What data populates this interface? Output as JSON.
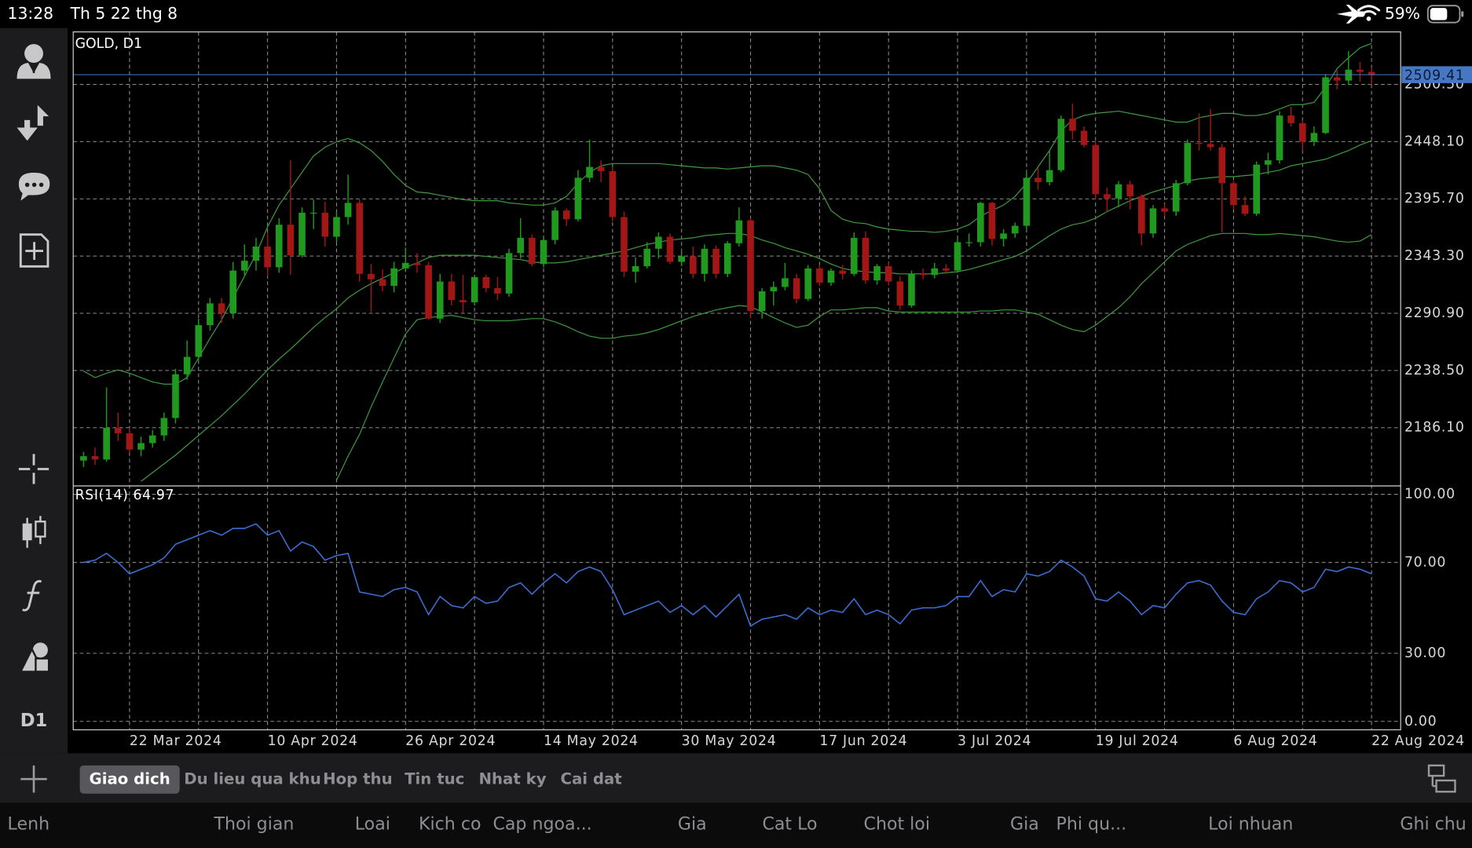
{
  "status_bar": {
    "time": "13:28",
    "date": "Th 5 22 thg 8",
    "battery": "59%"
  },
  "sidebar": {
    "timeframe": "D1"
  },
  "chart_data": [
    {
      "type": "candlestick",
      "title": "GOLD, D1",
      "x": [
        null,
        null,
        null,
        null,
        "22 Mar 2024",
        null,
        null,
        null,
        null,
        null,
        null,
        null,
        null,
        null,
        null,
        null,
        "10 Apr 2024",
        null,
        null,
        null,
        null,
        null,
        null,
        null,
        null,
        null,
        null,
        null,
        "26 Apr 2024",
        null,
        null,
        null,
        null,
        null,
        null,
        null,
        null,
        null,
        null,
        null,
        "14 May 2024",
        null,
        null,
        null,
        null,
        null,
        null,
        null,
        null,
        null,
        null,
        null,
        "30 May 2024",
        null,
        null,
        null,
        null,
        null,
        null,
        null,
        null,
        null,
        null,
        null,
        "17 Jun 2024",
        null,
        null,
        null,
        null,
        null,
        null,
        null,
        null,
        null,
        null,
        null,
        "3 Jul 2024",
        null,
        null,
        null,
        null,
        null,
        null,
        null,
        null,
        null,
        null,
        null,
        "19 Jul 2024",
        null,
        null,
        null,
        null,
        null,
        null,
        null,
        null,
        null,
        null,
        null,
        "6 Aug 2024",
        null,
        null,
        null,
        null,
        null,
        null,
        null,
        null,
        null,
        null,
        null,
        "22 Aug 2024"
      ],
      "open": [
        2156,
        2160,
        2157,
        2186,
        2181,
        2166,
        2172,
        2179,
        2195,
        2235,
        2251,
        2280,
        2300,
        2291,
        2330,
        2339,
        2352,
        2333,
        2372,
        2344,
        2383,
        2383,
        2361,
        2379,
        2392,
        2327,
        2322,
        2316,
        2332,
        2337,
        2335,
        2286,
        2320,
        2303,
        2301,
        2324,
        2314,
        2309,
        2346,
        2360,
        2336,
        2358,
        2385,
        2377,
        2415,
        2425,
        2421,
        2379,
        2329,
        2334,
        2350,
        2361,
        2338,
        2343,
        2327,
        2350,
        2327,
        2355,
        2376,
        2293,
        2311,
        2315,
        2323,
        2304,
        2332,
        2319,
        2330,
        2327,
        2360,
        2321,
        2334,
        2320,
        2298,
        2327,
        2326,
        2332,
        2330,
        2356,
        2356,
        2392,
        2359,
        2364,
        2371,
        2415,
        2411,
        2422,
        2469,
        2458,
        2445,
        2400,
        2396,
        2409,
        2398,
        2364,
        2387,
        2384,
        2410,
        2447,
        2446,
        2443,
        2410,
        2390,
        2382,
        2427,
        2431,
        2472,
        2465,
        2448,
        2456,
        2507,
        2504,
        2514,
        2512
      ],
      "high": [
        2164,
        2168,
        2223,
        2200,
        2186,
        2178,
        2184,
        2200,
        2240,
        2266,
        2286,
        2305,
        2305,
        2338,
        2354,
        2360,
        2365,
        2378,
        2431,
        2388,
        2395,
        2393,
        2384,
        2418,
        2395,
        2336,
        2331,
        2338,
        2351,
        2346,
        2338,
        2327,
        2327,
        2326,
        2326,
        2326,
        2324,
        2350,
        2378,
        2363,
        2362,
        2388,
        2387,
        2422,
        2450,
        2431,
        2425,
        2384,
        2342,
        2356,
        2365,
        2364,
        2347,
        2352,
        2354,
        2353,
        2357,
        2388,
        2378,
        2314,
        2320,
        2337,
        2327,
        2335,
        2335,
        2332,
        2335,
        2365,
        2366,
        2336,
        2337,
        2325,
        2330,
        2332,
        2337,
        2336,
        2359,
        2364,
        2393,
        2393,
        2368,
        2374,
        2420,
        2424,
        2440,
        2472,
        2483,
        2462,
        2448,
        2406,
        2412,
        2412,
        2400,
        2390,
        2391,
        2413,
        2450,
        2474,
        2478,
        2446,
        2412,
        2398,
        2430,
        2438,
        2476,
        2480,
        2468,
        2462,
        2510,
        2514,
        2531,
        2521,
        2516
      ],
      "low": [
        2150,
        2152,
        2155,
        2174,
        2163,
        2160,
        2168,
        2174,
        2190,
        2230,
        2248,
        2275,
        2282,
        2286,
        2325,
        2330,
        2325,
        2328,
        2326,
        2342,
        2368,
        2352,
        2356,
        2372,
        2320,
        2292,
        2311,
        2310,
        2329,
        2328,
        2285,
        2282,
        2298,
        2291,
        2298,
        2310,
        2303,
        2306,
        2341,
        2334,
        2333,
        2354,
        2371,
        2375,
        2411,
        2411,
        2375,
        2324,
        2319,
        2332,
        2341,
        2336,
        2334,
        2323,
        2320,
        2323,
        2324,
        2352,
        2287,
        2286,
        2298,
        2312,
        2300,
        2302,
        2316,
        2316,
        2322,
        2325,
        2318,
        2317,
        2317,
        2294,
        2296,
        2322,
        2323,
        2327,
        2328,
        2352,
        2352,
        2353,
        2352,
        2360,
        2367,
        2404,
        2408,
        2420,
        2450,
        2443,
        2395,
        2384,
        2388,
        2386,
        2353,
        2360,
        2380,
        2380,
        2408,
        2440,
        2440,
        2365,
        2386,
        2380,
        2380,
        2418,
        2428,
        2462,
        2440,
        2444,
        2455,
        2496,
        2500,
        2503,
        2500
      ],
      "close": [
        2160,
        2157,
        2186,
        2181,
        2166,
        2172,
        2179,
        2195,
        2235,
        2251,
        2280,
        2300,
        2291,
        2330,
        2339,
        2352,
        2333,
        2372,
        2344,
        2383,
        2383,
        2361,
        2379,
        2392,
        2327,
        2322,
        2316,
        2332,
        2337,
        2335,
        2286,
        2320,
        2303,
        2301,
        2324,
        2314,
        2309,
        2346,
        2360,
        2336,
        2358,
        2385,
        2377,
        2415,
        2425,
        2421,
        2379,
        2329,
        2334,
        2350,
        2361,
        2338,
        2343,
        2327,
        2350,
        2327,
        2355,
        2376,
        2293,
        2311,
        2315,
        2323,
        2304,
        2332,
        2319,
        2330,
        2327,
        2360,
        2321,
        2334,
        2320,
        2298,
        2327,
        2326,
        2332,
        2330,
        2356,
        2356,
        2392,
        2359,
        2364,
        2371,
        2415,
        2411,
        2422,
        2469,
        2458,
        2445,
        2400,
        2396,
        2409,
        2398,
        2364,
        2387,
        2384,
        2410,
        2447,
        2446,
        2443,
        2410,
        2390,
        2382,
        2427,
        2431,
        2472,
        2465,
        2448,
        2456,
        2507,
        2504,
        2514,
        2512,
        2509
      ],
      "up_color": "#1f9a1f",
      "down_color": "#a31616",
      "bands": {
        "color": "#3f9a3f",
        "upper": [
          2238,
          2232,
          2236,
          2239,
          2236,
          2232,
          2228,
          2226,
          2226,
          2232,
          2250,
          2268,
          2285,
          2305,
          2325,
          2345,
          2370,
          2390,
          2405,
          2420,
          2435,
          2443,
          2448,
          2451,
          2447,
          2440,
          2430,
          2418,
          2408,
          2402,
          2401,
          2399,
          2397,
          2395,
          2394,
          2394,
          2394,
          2392,
          2391,
          2390,
          2390,
          2392,
          2398,
          2410,
          2420,
          2426,
          2428,
          2428,
          2428,
          2428,
          2428,
          2427,
          2426,
          2425,
          2424,
          2424,
          2423,
          2424,
          2425,
          2426,
          2426,
          2424,
          2422,
          2418,
          2405,
          2385,
          2377,
          2374,
          2373,
          2370,
          2368,
          2367,
          2366,
          2366,
          2365,
          2366,
          2368,
          2372,
          2380,
          2385,
          2390,
          2398,
          2410,
          2425,
          2440,
          2458,
          2468,
          2472,
          2474,
          2475,
          2476,
          2474,
          2472,
          2470,
          2468,
          2466,
          2466,
          2470,
          2472,
          2474,
          2474,
          2472,
          2472,
          2474,
          2478,
          2482,
          2482,
          2484,
          2498,
          2515,
          2525,
          2534,
          2538
        ],
        "middle": [
          null,
          null,
          null,
          null,
          null,
          2137,
          2145,
          2153,
          2161,
          2170,
          2179,
          2188,
          2197,
          2207,
          2217,
          2228,
          2239,
          2249,
          2258,
          2268,
          2278,
          2287,
          2295,
          2305,
          2312,
          2318,
          2323,
          2328,
          2333,
          2337,
          2342,
          2344,
          2344,
          2344,
          2344,
          2343,
          2342,
          2341,
          2340,
          2338,
          2337,
          2337,
          2338,
          2340,
          2342,
          2344,
          2346,
          2348,
          2351,
          2354,
          2356,
          2358,
          2359,
          2360,
          2362,
          2363,
          2364,
          2364,
          2362,
          2358,
          2355,
          2351,
          2348,
          2345,
          2341,
          2336,
          2332,
          2330,
          2329,
          2328,
          2328,
          2327,
          2327,
          2327,
          2327,
          2328,
          2329,
          2331,
          2334,
          2337,
          2340,
          2343,
          2348,
          2355,
          2362,
          2368,
          2372,
          2374,
          2378,
          2384,
          2389,
          2394,
          2398,
          2402,
          2405,
          2408,
          2412,
          2414,
          2415,
          2416,
          2416,
          2417,
          2418,
          2420,
          2422,
          2426,
          2428,
          2430,
          2432,
          2436,
          2440,
          2445,
          2449
        ],
        "lower": [
          null,
          null,
          null,
          null,
          null,
          null,
          null,
          null,
          null,
          null,
          null,
          null,
          null,
          null,
          null,
          null,
          null,
          null,
          null,
          null,
          null,
          null,
          2138,
          2160,
          2180,
          2205,
          2228,
          2250,
          2272,
          2285,
          2287,
          2288,
          2289,
          2287,
          2285,
          2284,
          2284,
          2284,
          2285,
          2286,
          2286,
          2283,
          2279,
          2274,
          2270,
          2268,
          2268,
          2270,
          2271,
          2273,
          2276,
          2280,
          2284,
          2288,
          2291,
          2294,
          2296,
          2298,
          2297,
          2292,
          2287,
          2282,
          2278,
          2280,
          2288,
          2294,
          2294,
          2295,
          2296,
          2296,
          2293,
          2292,
          2292,
          2292,
          2292,
          2292,
          2292,
          2292,
          2293,
          2293,
          2294,
          2294,
          2292,
          2290,
          2285,
          2280,
          2276,
          2274,
          2280,
          2288,
          2296,
          2306,
          2318,
          2328,
          2338,
          2348,
          2354,
          2358,
          2362,
          2364,
          2364,
          2364,
          2363,
          2363,
          2364,
          2363,
          2362,
          2361,
          2359,
          2357,
          2356,
          2357,
          2363
        ]
      },
      "ylim": [
        2132.8,
        2548.6
      ],
      "yticks": [
        {
          "value": 2186.1,
          "label": "2186.10"
        },
        {
          "value": 2238.5,
          "label": "2238.50"
        },
        {
          "value": 2290.9,
          "label": "2290.90"
        },
        {
          "value": 2343.3,
          "label": "2343.30"
        },
        {
          "value": 2395.7,
          "label": "2395.70"
        },
        {
          "value": 2448.1,
          "label": "2448.10"
        },
        {
          "value": 2500.5,
          "label": "2500.50"
        }
      ],
      "last_price": 2509.41,
      "last_price_color": "#4677c4",
      "grid": true
    },
    {
      "type": "line",
      "title": "RSI(14) 64.97",
      "series": [
        {
          "color": "#3b6fd6",
          "values": [
            70,
            71,
            74,
            70,
            65,
            67,
            69,
            72,
            78,
            80,
            82,
            84,
            82,
            85,
            85,
            87,
            82,
            84,
            75,
            79,
            77,
            71,
            73,
            74,
            57,
            56,
            55,
            58,
            59,
            57,
            47,
            55,
            51,
            50,
            55,
            52,
            53,
            59,
            61,
            56,
            61,
            65,
            61,
            66,
            68,
            66,
            58,
            47,
            49,
            51,
            53,
            48,
            51,
            47,
            51,
            46,
            51,
            56,
            42,
            45,
            46,
            47,
            45,
            50,
            47,
            49,
            48,
            54,
            47,
            49,
            47,
            43,
            49,
            50,
            50,
            51,
            55,
            55,
            62,
            55,
            58,
            57,
            65,
            64,
            66,
            71,
            68,
            64,
            54,
            53,
            57,
            53,
            47,
            51,
            50,
            56,
            61,
            62,
            60,
            53,
            48,
            47,
            54,
            57,
            62,
            61,
            57,
            59,
            67,
            66,
            68,
            67,
            65
          ]
        }
      ],
      "ylim": [
        -3.7,
        103.7
      ],
      "yticks": [
        {
          "value": 100,
          "label": "100.00"
        },
        {
          "value": 70,
          "label": "70.00"
        },
        {
          "value": 30,
          "label": "30.00"
        },
        {
          "value": 0,
          "label": "0.00"
        }
      ],
      "grid": true
    }
  ],
  "toolbar": {
    "tabs": [
      {
        "label": "Giao dich",
        "active": true
      },
      {
        "label": "Du lieu qua khu",
        "active": false
      },
      {
        "label": "Hop thu",
        "active": false
      },
      {
        "label": "Tin tuc",
        "active": false
      },
      {
        "label": "Nhat ky",
        "active": false
      },
      {
        "label": "Cai dat",
        "active": false
      }
    ]
  },
  "orders_table": {
    "columns": [
      "Lenh",
      "Thoi gian",
      "Loai",
      "Kich co",
      "Cap ngoa...",
      "Gia",
      "Cat Lo",
      "Chot loi",
      "Gia",
      "Phi qu...",
      "Loi nhuan",
      "Ghi chu"
    ]
  }
}
